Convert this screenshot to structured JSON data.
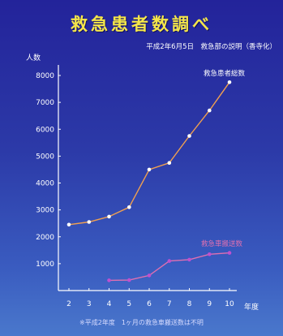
{
  "title": "救急患者数調べ",
  "subtitle": "平成2年6月5日　救急部の説明（香寺化）",
  "footnote": "※平成2年度　1ヶ月の救急車搬送数は不明",
  "colors": {
    "title": "#f5e64a",
    "axis": "#ffffff",
    "total_line": "#f0a050",
    "total_marker": "#ffffff",
    "ambulance_line": "#e070b0",
    "ambulance_marker": "#c050d0"
  },
  "chart_data": {
    "type": "line",
    "title": "救急患者数調べ",
    "xlabel": "年度",
    "ylabel": "人数",
    "x": [
      2,
      3,
      4,
      5,
      6,
      7,
      8,
      9,
      10
    ],
    "y_ticks": [
      1000,
      2000,
      3000,
      4000,
      5000,
      6000,
      7000,
      8000
    ],
    "ylim": [
      0,
      8000
    ],
    "grid": false,
    "series": [
      {
        "name": "救急患者総数",
        "values": [
          2450,
          2550,
          2750,
          3100,
          4500,
          4750,
          5750,
          6700,
          7750
        ],
        "line_color": "#f0a050",
        "marker_color": "#ffffff"
      },
      {
        "name": "救急車搬送数",
        "values": [
          null,
          null,
          380,
          390,
          560,
          1100,
          1150,
          1350,
          1400
        ],
        "line_color": "#e070b0",
        "marker_color": "#c050d0"
      }
    ]
  }
}
